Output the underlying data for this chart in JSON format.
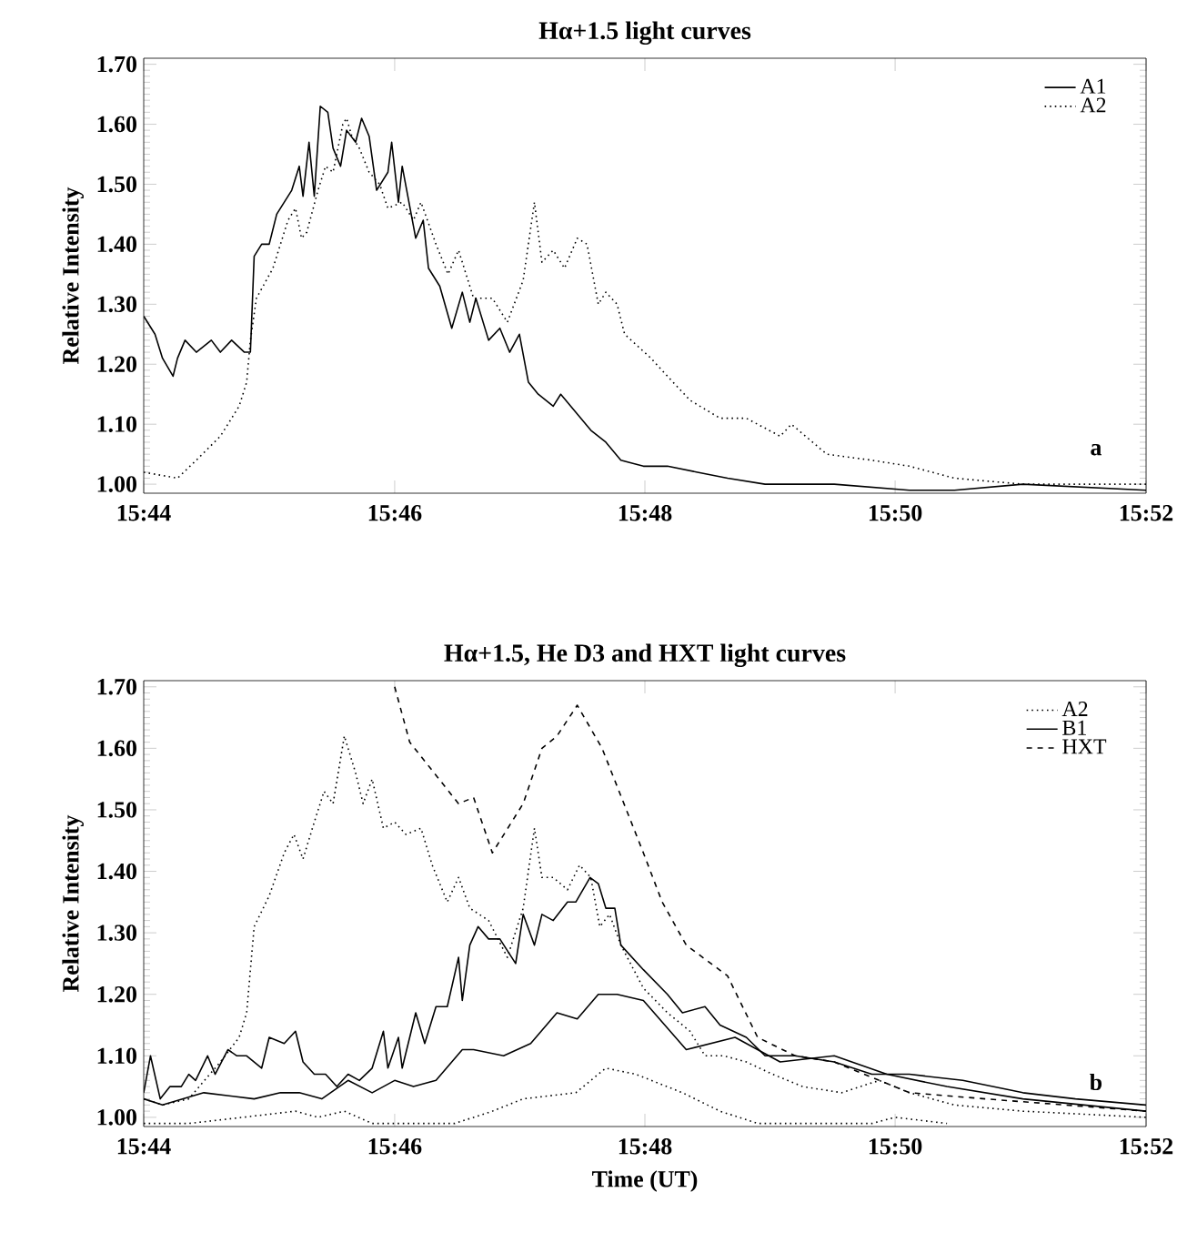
{
  "chart_data": [
    {
      "type": "line",
      "title": "Hα+1.5 light curves",
      "ylabel": "Relative Intensity",
      "annotations": [
        "a"
      ],
      "xlim": [
        15.7333,
        15.8667
      ],
      "xticks": [
        {
          "value": 15.7333,
          "label": "15:44"
        },
        {
          "value": 15.7667,
          "label": "15:46"
        },
        {
          "value": 15.8,
          "label": "15:48"
        },
        {
          "value": 15.8333,
          "label": "15:50"
        },
        {
          "value": 15.8667,
          "label": "15:52"
        }
      ],
      "ylim": [
        0.985,
        1.71
      ],
      "yticks": [
        {
          "value": 1.0,
          "label": "1.00"
        },
        {
          "value": 1.1,
          "label": "1.10"
        },
        {
          "value": 1.2,
          "label": "1.20"
        },
        {
          "value": 1.3,
          "label": "1.30"
        },
        {
          "value": 1.4,
          "label": "1.40"
        },
        {
          "value": 1.5,
          "label": "1.50"
        },
        {
          "value": 1.6,
          "label": "1.60"
        },
        {
          "value": 1.7,
          "label": "1.70"
        }
      ],
      "legend": "top right",
      "series": [
        {
          "name": "A1",
          "color": "#000000",
          "line_style": "solid",
          "x": [
            15.7333,
            15.7348,
            15.7358,
            15.7372,
            15.7378,
            15.7388,
            15.7403,
            15.7423,
            15.7435,
            15.745,
            15.7467,
            15.7475,
            15.748,
            15.749,
            15.75,
            15.751,
            15.753,
            15.754,
            15.7545,
            15.7553,
            15.756,
            15.7568,
            15.7578,
            15.7585,
            15.7595,
            15.7603,
            15.7615,
            15.7623,
            15.7633,
            15.7643,
            15.7658,
            15.7663,
            15.7672,
            15.7677,
            15.7695,
            15.7705,
            15.7712,
            15.7727,
            15.7743,
            15.7757,
            15.7767,
            15.7775,
            15.7792,
            15.7807,
            15.782,
            15.7833,
            15.7845,
            15.7858,
            15.7878,
            15.7888,
            15.7908,
            15.7928,
            15.7948,
            15.7968,
            15.7998,
            15.803,
            15.807,
            15.811,
            15.816,
            15.8252,
            15.8352,
            15.8412,
            15.8503,
            15.8667
          ],
          "values": [
            1.28,
            1.25,
            1.21,
            1.18,
            1.21,
            1.24,
            1.22,
            1.24,
            1.22,
            1.24,
            1.22,
            1.22,
            1.38,
            1.4,
            1.4,
            1.45,
            1.49,
            1.53,
            1.48,
            1.57,
            1.48,
            1.63,
            1.62,
            1.56,
            1.53,
            1.59,
            1.57,
            1.61,
            1.58,
            1.49,
            1.52,
            1.57,
            1.47,
            1.53,
            1.41,
            1.44,
            1.36,
            1.33,
            1.26,
            1.32,
            1.27,
            1.31,
            1.24,
            1.26,
            1.22,
            1.25,
            1.17,
            1.15,
            1.13,
            1.15,
            1.12,
            1.09,
            1.07,
            1.04,
            1.03,
            1.03,
            1.02,
            1.01,
            1.0,
            1.0,
            0.99,
            0.99,
            1.0,
            0.99
          ]
        },
        {
          "name": "A2",
          "color": "#000000",
          "line_style": "dotted",
          "x": [
            15.7333,
            15.7378,
            15.7403,
            15.7435,
            15.746,
            15.747,
            15.7475,
            15.7483,
            15.7505,
            15.7525,
            15.7535,
            15.7543,
            15.755,
            15.7565,
            15.7575,
            15.7585,
            15.7598,
            15.7603,
            15.761,
            15.762,
            15.7633,
            15.7647,
            15.7658,
            15.7677,
            15.7692,
            15.7702,
            15.7722,
            15.7738,
            15.7752,
            15.7772,
            15.7797,
            15.7817,
            15.7838,
            15.7853,
            15.7863,
            15.7878,
            15.7893,
            15.791,
            15.7923,
            15.7938,
            15.7948,
            15.7963,
            15.7973,
            15.8008,
            15.803,
            15.806,
            15.81,
            15.8135,
            15.818,
            15.8195,
            15.8242,
            15.8302,
            15.8352,
            15.8412,
            15.8503,
            15.8667
          ],
          "values": [
            1.02,
            1.01,
            1.04,
            1.08,
            1.13,
            1.17,
            1.24,
            1.31,
            1.36,
            1.44,
            1.46,
            1.41,
            1.42,
            1.49,
            1.53,
            1.52,
            1.6,
            1.61,
            1.58,
            1.56,
            1.52,
            1.5,
            1.46,
            1.47,
            1.44,
            1.47,
            1.4,
            1.35,
            1.39,
            1.31,
            1.31,
            1.27,
            1.34,
            1.47,
            1.37,
            1.39,
            1.36,
            1.41,
            1.4,
            1.3,
            1.32,
            1.3,
            1.25,
            1.21,
            1.18,
            1.14,
            1.11,
            1.11,
            1.08,
            1.1,
            1.05,
            1.04,
            1.03,
            1.01,
            1.0,
            1.0
          ]
        }
      ]
    },
    {
      "type": "line",
      "title": "Hα+1.5, He D3 and HXT light curves",
      "xlabel": "Time (UT)",
      "ylabel": "Relative Intensity",
      "annotations": [
        "b"
      ],
      "xlim": [
        15.7333,
        15.8667
      ],
      "xticks": [
        {
          "value": 15.7333,
          "label": "15:44"
        },
        {
          "value": 15.7667,
          "label": "15:46"
        },
        {
          "value": 15.8,
          "label": "15:48"
        },
        {
          "value": 15.8333,
          "label": "15:50"
        },
        {
          "value": 15.8667,
          "label": "15:52"
        }
      ],
      "ylim": [
        0.985,
        1.71
      ],
      "yticks": [
        {
          "value": 1.0,
          "label": "1.00"
        },
        {
          "value": 1.1,
          "label": "1.10"
        },
        {
          "value": 1.2,
          "label": "1.20"
        },
        {
          "value": 1.3,
          "label": "1.30"
        },
        {
          "value": 1.4,
          "label": "1.40"
        },
        {
          "value": 1.5,
          "label": "1.50"
        },
        {
          "value": 1.6,
          "label": "1.60"
        },
        {
          "value": 1.7,
          "label": "1.70"
        }
      ],
      "legend": "top right",
      "series": [
        {
          "name": "A2",
          "color": "#000000",
          "line_style": "dotted",
          "x": [
            15.7333,
            15.7358,
            15.7393,
            15.7435,
            15.746,
            15.747,
            15.748,
            15.75,
            15.752,
            15.7533,
            15.7545,
            15.756,
            15.7573,
            15.7585,
            15.76,
            15.7615,
            15.7625,
            15.7637,
            15.7652,
            15.7667,
            15.7682,
            15.7702,
            15.7717,
            15.7737,
            15.7752,
            15.7767,
            15.7792,
            15.7817,
            15.7838,
            15.7853,
            15.7863,
            15.7878,
            15.7897,
            15.7913,
            15.7928,
            15.794,
            15.7953,
            15.7968,
            15.7998,
            15.803,
            15.806,
            15.808,
            15.8105,
            15.8135,
            15.817,
            15.821,
            15.8262,
            15.8312,
            15.8352,
            15.8412,
            15.8503,
            15.8667
          ],
          "values": [
            1.03,
            1.02,
            1.03,
            1.09,
            1.13,
            1.17,
            1.31,
            1.36,
            1.43,
            1.46,
            1.42,
            1.48,
            1.53,
            1.51,
            1.62,
            1.56,
            1.51,
            1.55,
            1.47,
            1.48,
            1.46,
            1.47,
            1.41,
            1.35,
            1.39,
            1.34,
            1.32,
            1.26,
            1.34,
            1.47,
            1.39,
            1.39,
            1.37,
            1.41,
            1.39,
            1.31,
            1.33,
            1.28,
            1.21,
            1.17,
            1.14,
            1.1,
            1.1,
            1.09,
            1.07,
            1.05,
            1.04,
            1.06,
            1.04,
            1.02,
            1.01,
            1.0
          ]
        },
        {
          "name": "B1",
          "color": "#000000",
          "line_style": "solid",
          "x": [
            15.7333,
            15.7342,
            15.7355,
            15.7368,
            15.7383,
            15.7393,
            15.7402,
            15.7418,
            15.7428,
            15.7445,
            15.7457,
            15.747,
            15.749,
            15.75,
            15.752,
            15.7535,
            15.7545,
            15.756,
            15.7575,
            15.759,
            15.7605,
            15.762,
            15.7637,
            15.7652,
            15.7658,
            15.7672,
            15.7677,
            15.7695,
            15.7707,
            15.7722,
            15.7737,
            15.7752,
            15.7757,
            15.7767,
            15.7778,
            15.7792,
            15.7807,
            15.7828,
            15.7838,
            15.7853,
            15.7863,
            15.7878,
            15.7897,
            15.7908,
            15.7927,
            15.7938,
            15.7948,
            15.796,
            15.7968,
            15.7998,
            15.803,
            15.805,
            15.808,
            15.81,
            15.8135,
            15.816,
            15.82,
            15.8252,
            15.8302,
            15.8352,
            15.8423,
            15.8503,
            15.8573,
            15.8667
          ],
          "values": [
            1.04,
            1.1,
            1.03,
            1.05,
            1.05,
            1.07,
            1.06,
            1.1,
            1.07,
            1.11,
            1.1,
            1.1,
            1.08,
            1.13,
            1.12,
            1.14,
            1.09,
            1.07,
            1.07,
            1.05,
            1.07,
            1.06,
            1.08,
            1.14,
            1.08,
            1.13,
            1.08,
            1.17,
            1.12,
            1.18,
            1.18,
            1.26,
            1.19,
            1.28,
            1.31,
            1.29,
            1.29,
            1.25,
            1.33,
            1.28,
            1.33,
            1.32,
            1.35,
            1.35,
            1.39,
            1.38,
            1.34,
            1.34,
            1.28,
            1.24,
            1.2,
            1.17,
            1.18,
            1.15,
            1.13,
            1.1,
            1.1,
            1.09,
            1.07,
            1.07,
            1.06,
            1.04,
            1.03,
            1.02
          ]
        },
        {
          "name": "HXT",
          "color": "#000000",
          "line_style": "dashed",
          "x": [
            15.7667,
            15.7687,
            15.7752,
            15.7772,
            15.7797,
            15.7838,
            15.7863,
            15.7883,
            15.791,
            15.7943,
            15.7998,
            15.8023,
            15.8055,
            15.811,
            15.815,
            15.82,
            15.8252,
            15.8352,
            15.8453,
            15.8667
          ],
          "values": [
            1.7,
            1.61,
            1.51,
            1.52,
            1.43,
            1.51,
            1.6,
            1.62,
            1.67,
            1.6,
            1.43,
            1.35,
            1.28,
            1.23,
            1.13,
            1.1,
            1.09,
            1.04,
            1.03,
            1.01
          ]
        },
        {
          "color": "#000000",
          "line_style": "solid",
          "x": [
            15.7333,
            15.7358,
            15.7413,
            15.748,
            15.7515,
            15.754,
            15.757,
            15.7605,
            15.7637,
            15.7667,
            15.7692,
            15.7722,
            15.7757,
            15.7772,
            15.7812,
            15.7848,
            15.7883,
            15.791,
            15.7938,
            15.7963,
            15.7998,
            15.8055,
            15.812,
            15.818,
            15.8252,
            15.8322,
            15.8402,
            15.8503,
            15.8667
          ],
          "values": [
            1.03,
            1.02,
            1.04,
            1.03,
            1.04,
            1.04,
            1.03,
            1.06,
            1.04,
            1.06,
            1.05,
            1.06,
            1.11,
            1.11,
            1.1,
            1.12,
            1.17,
            1.16,
            1.2,
            1.2,
            1.19,
            1.11,
            1.13,
            1.09,
            1.1,
            1.07,
            1.05,
            1.03,
            1.01
          ]
        },
        {
          "color": "#000000",
          "line_style": "dotted",
          "x": [
            15.7333,
            15.7393,
            15.7465,
            15.7535,
            15.7565,
            15.76,
            15.7637,
            15.7747,
            15.7797,
            15.7838,
            15.7908,
            15.7948,
            15.7988,
            15.805,
            15.81,
            15.815,
            15.8302,
            15.8333,
            15.8402
          ],
          "values": [
            0.99,
            0.99,
            1.0,
            1.01,
            1.0,
            1.01,
            0.99,
            0.99,
            1.01,
            1.03,
            1.04,
            1.08,
            1.07,
            1.04,
            1.01,
            0.99,
            0.99,
            1.0,
            0.99
          ]
        }
      ]
    }
  ]
}
